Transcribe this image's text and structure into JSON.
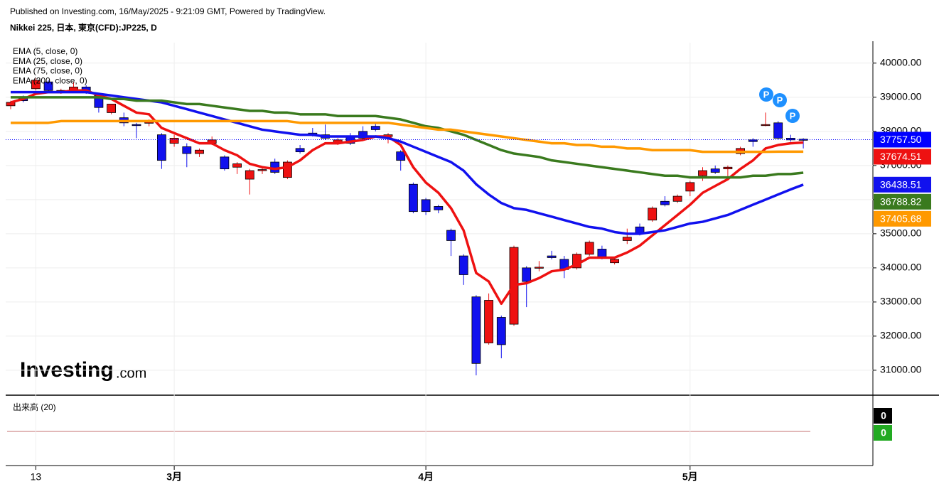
{
  "header": {
    "published": "Published on Investing.com, 16/May/2025 - 9:21:09 GMT, Powered by TradingView.",
    "symbol": "Nikkei 225, 日本, 東京(CFD):JP225, D"
  },
  "logo": {
    "name": "Investing",
    "suffix": ".com"
  },
  "chart_data": {
    "type": "candlestick",
    "categories": [
      null,
      null,
      "13",
      null,
      null,
      null,
      null,
      null,
      null,
      null,
      null,
      null,
      null,
      "3月",
      null,
      null,
      null,
      null,
      null,
      null,
      null,
      null,
      null,
      null,
      null,
      null,
      null,
      null,
      null,
      null,
      null,
      null,
      null,
      "4月",
      null,
      null,
      null,
      null,
      null,
      null,
      null,
      null,
      null,
      null,
      null,
      null,
      null,
      null,
      null,
      null,
      null,
      null,
      null,
      null,
      "5月",
      null,
      null,
      null,
      null,
      null,
      null,
      null,
      null,
      null
    ],
    "open": [
      38750,
      39000,
      39250,
      39450,
      39150,
      39200,
      39300,
      39050,
      38550,
      38400,
      38200,
      38250,
      37900,
      37650,
      37550,
      37350,
      37650,
      37250,
      36950,
      36600,
      36850,
      37100,
      36650,
      37500,
      37950,
      37900,
      37650,
      37850,
      38000,
      38150,
      37850,
      37400,
      36450,
      36000,
      35800,
      35100,
      34350,
      33150,
      31800,
      32550,
      32350,
      34000,
      34000,
      34350,
      34250,
      34000,
      34400,
      34550,
      34150,
      34800,
      35200,
      35400,
      35950,
      35950,
      36250,
      36700,
      36900,
      36900,
      37350,
      37750,
      38180,
      38250,
      37800,
      37770
    ],
    "high": [
      38900,
      39050,
      39550,
      39500,
      39250,
      39450,
      39350,
      39100,
      38800,
      38550,
      38250,
      38350,
      37950,
      37900,
      37650,
      37500,
      37850,
      37300,
      37100,
      36900,
      36950,
      37200,
      37150,
      37600,
      38100,
      38200,
      37800,
      37950,
      38150,
      38250,
      37950,
      37450,
      36500,
      36050,
      35850,
      35150,
      34400,
      33200,
      33250,
      32600,
      34650,
      34050,
      34200,
      34500,
      34350,
      34450,
      34800,
      34650,
      34300,
      35150,
      35300,
      35800,
      36100,
      36150,
      36550,
      36950,
      37000,
      37000,
      37550,
      37800,
      38550,
      38300,
      37900,
      37800
    ],
    "low": [
      38650,
      38850,
      39200,
      39150,
      39100,
      39150,
      39100,
      38550,
      38500,
      38150,
      37800,
      38150,
      36900,
      37550,
      36950,
      37250,
      37600,
      36850,
      36750,
      36150,
      36750,
      36750,
      36600,
      37350,
      37850,
      37750,
      37600,
      37600,
      37750,
      38000,
      37650,
      36850,
      35600,
      35550,
      35600,
      34350,
      33500,
      30850,
      31750,
      31350,
      32300,
      32850,
      33900,
      34250,
      33700,
      33950,
      34350,
      34250,
      34100,
      34700,
      34950,
      35350,
      35800,
      35900,
      36100,
      36550,
      36750,
      36650,
      37300,
      37550,
      38150,
      37750,
      37700,
      37500
    ],
    "close": [
      38850,
      38900,
      39500,
      39200,
      39200,
      39300,
      39150,
      38700,
      38800,
      38250,
      38180,
      38270,
      37150,
      37800,
      37350,
      37450,
      37750,
      36900,
      37050,
      36850,
      36880,
      36800,
      37100,
      37400,
      37900,
      37800,
      37750,
      37650,
      37800,
      38050,
      37900,
      37150,
      35650,
      35650,
      35700,
      34800,
      33800,
      31200,
      33050,
      31750,
      34600,
      33600,
      34020,
      34300,
      33950,
      34400,
      34750,
      34300,
      34250,
      34900,
      35000,
      35750,
      35850,
      36100,
      36500,
      36850,
      36800,
      36950,
      37500,
      37700,
      38200,
      37800,
      37750,
      37757.5
    ],
    "up_color": "#ee1111",
    "down_color": "#1111ee",
    "last_price": {
      "value": 37757.5,
      "label": "37757.50",
      "color": "#0000ff"
    },
    "series": [
      {
        "name": "EMA (5, close, 0)",
        "color": "#ee1111",
        "values": [
          38850,
          38950,
          39100,
          39150,
          39150,
          39200,
          39200,
          39050,
          38950,
          38750,
          38550,
          38500,
          38100,
          37950,
          37800,
          37650,
          37650,
          37450,
          37300,
          37050,
          36950,
          36900,
          36950,
          37150,
          37450,
          37650,
          37650,
          37700,
          37750,
          37850,
          37850,
          37600,
          36950,
          36500,
          36200,
          35750,
          35100,
          33850,
          33600,
          32950,
          33500,
          33550,
          33700,
          33900,
          33950,
          34100,
          34300,
          34300,
          34300,
          34450,
          34650,
          34950,
          35250,
          35550,
          35850,
          36200,
          36400,
          36600,
          36900,
          37150,
          37500,
          37600,
          37650,
          37674.51
        ]
      },
      {
        "name": "EMA (25, close, 0)",
        "color": "#1111ee",
        "values": [
          39150,
          39150,
          39150,
          39150,
          39150,
          39150,
          39150,
          39100,
          39050,
          39000,
          38950,
          38900,
          38850,
          38750,
          38650,
          38550,
          38450,
          38350,
          38250,
          38150,
          38050,
          38000,
          37950,
          37900,
          37900,
          37850,
          37850,
          37850,
          37850,
          37850,
          37800,
          37700,
          37550,
          37400,
          37250,
          37100,
          36850,
          36450,
          36150,
          35900,
          35750,
          35700,
          35600,
          35500,
          35400,
          35300,
          35200,
          35150,
          35050,
          35000,
          35000,
          35050,
          35100,
          35200,
          35300,
          35350,
          35450,
          35550,
          35700,
          35850,
          36000,
          36150,
          36300,
          36438.51
        ]
      },
      {
        "name": "EMA (75, close, 0)",
        "color": "#3a7a1e",
        "values": [
          39000,
          39000,
          39000,
          39000,
          39000,
          39000,
          39000,
          39000,
          38950,
          38950,
          38900,
          38900,
          38900,
          38850,
          38800,
          38800,
          38750,
          38700,
          38650,
          38600,
          38600,
          38550,
          38550,
          38500,
          38500,
          38500,
          38450,
          38450,
          38450,
          38450,
          38400,
          38350,
          38250,
          38150,
          38100,
          38000,
          37900,
          37750,
          37600,
          37450,
          37350,
          37300,
          37250,
          37150,
          37100,
          37050,
          37000,
          36950,
          36900,
          36850,
          36800,
          36750,
          36700,
          36700,
          36650,
          36650,
          36650,
          36650,
          36650,
          36700,
          36700,
          36750,
          36750,
          36788.82
        ]
      },
      {
        "name": "EMA (200, close, 0)",
        "color": "#ff9900",
        "values": [
          38250,
          38250,
          38250,
          38250,
          38300,
          38300,
          38300,
          38300,
          38300,
          38300,
          38300,
          38300,
          38300,
          38300,
          38300,
          38300,
          38300,
          38300,
          38300,
          38300,
          38300,
          38300,
          38300,
          38250,
          38250,
          38250,
          38250,
          38250,
          38250,
          38250,
          38250,
          38200,
          38150,
          38100,
          38050,
          38050,
          38000,
          37950,
          37900,
          37850,
          37800,
          37750,
          37700,
          37650,
          37650,
          37600,
          37600,
          37550,
          37550,
          37500,
          37500,
          37450,
          37450,
          37450,
          37450,
          37400,
          37400,
          37400,
          37400,
          37400,
          37400,
          37405,
          37405,
          37405.68
        ]
      }
    ],
    "ylim": [
      30290,
      40600
    ],
    "yticks": [
      {
        "value": 31000,
        "label": "31000.00"
      },
      {
        "value": 32000,
        "label": "32000.00"
      },
      {
        "value": 33000,
        "label": "33000.00"
      },
      {
        "value": 34000,
        "label": "34000.00"
      },
      {
        "value": 35000,
        "label": "35000.00"
      },
      {
        "value": 36000,
        "label": "36000.00"
      },
      {
        "value": 37000,
        "label": "37000.00"
      },
      {
        "value": 38000,
        "label": "38000.00"
      },
      {
        "value": 39000,
        "label": "39000.00"
      },
      {
        "value": 40000,
        "label": "40000.00"
      }
    ],
    "grid": true,
    "signals": [
      "P",
      "P",
      "P"
    ],
    "volume": {
      "title": "出来高 (20)",
      "badges": [
        {
          "value": 0,
          "color": "#000000"
        },
        {
          "value": 0,
          "color": "#22aa22"
        }
      ]
    }
  }
}
